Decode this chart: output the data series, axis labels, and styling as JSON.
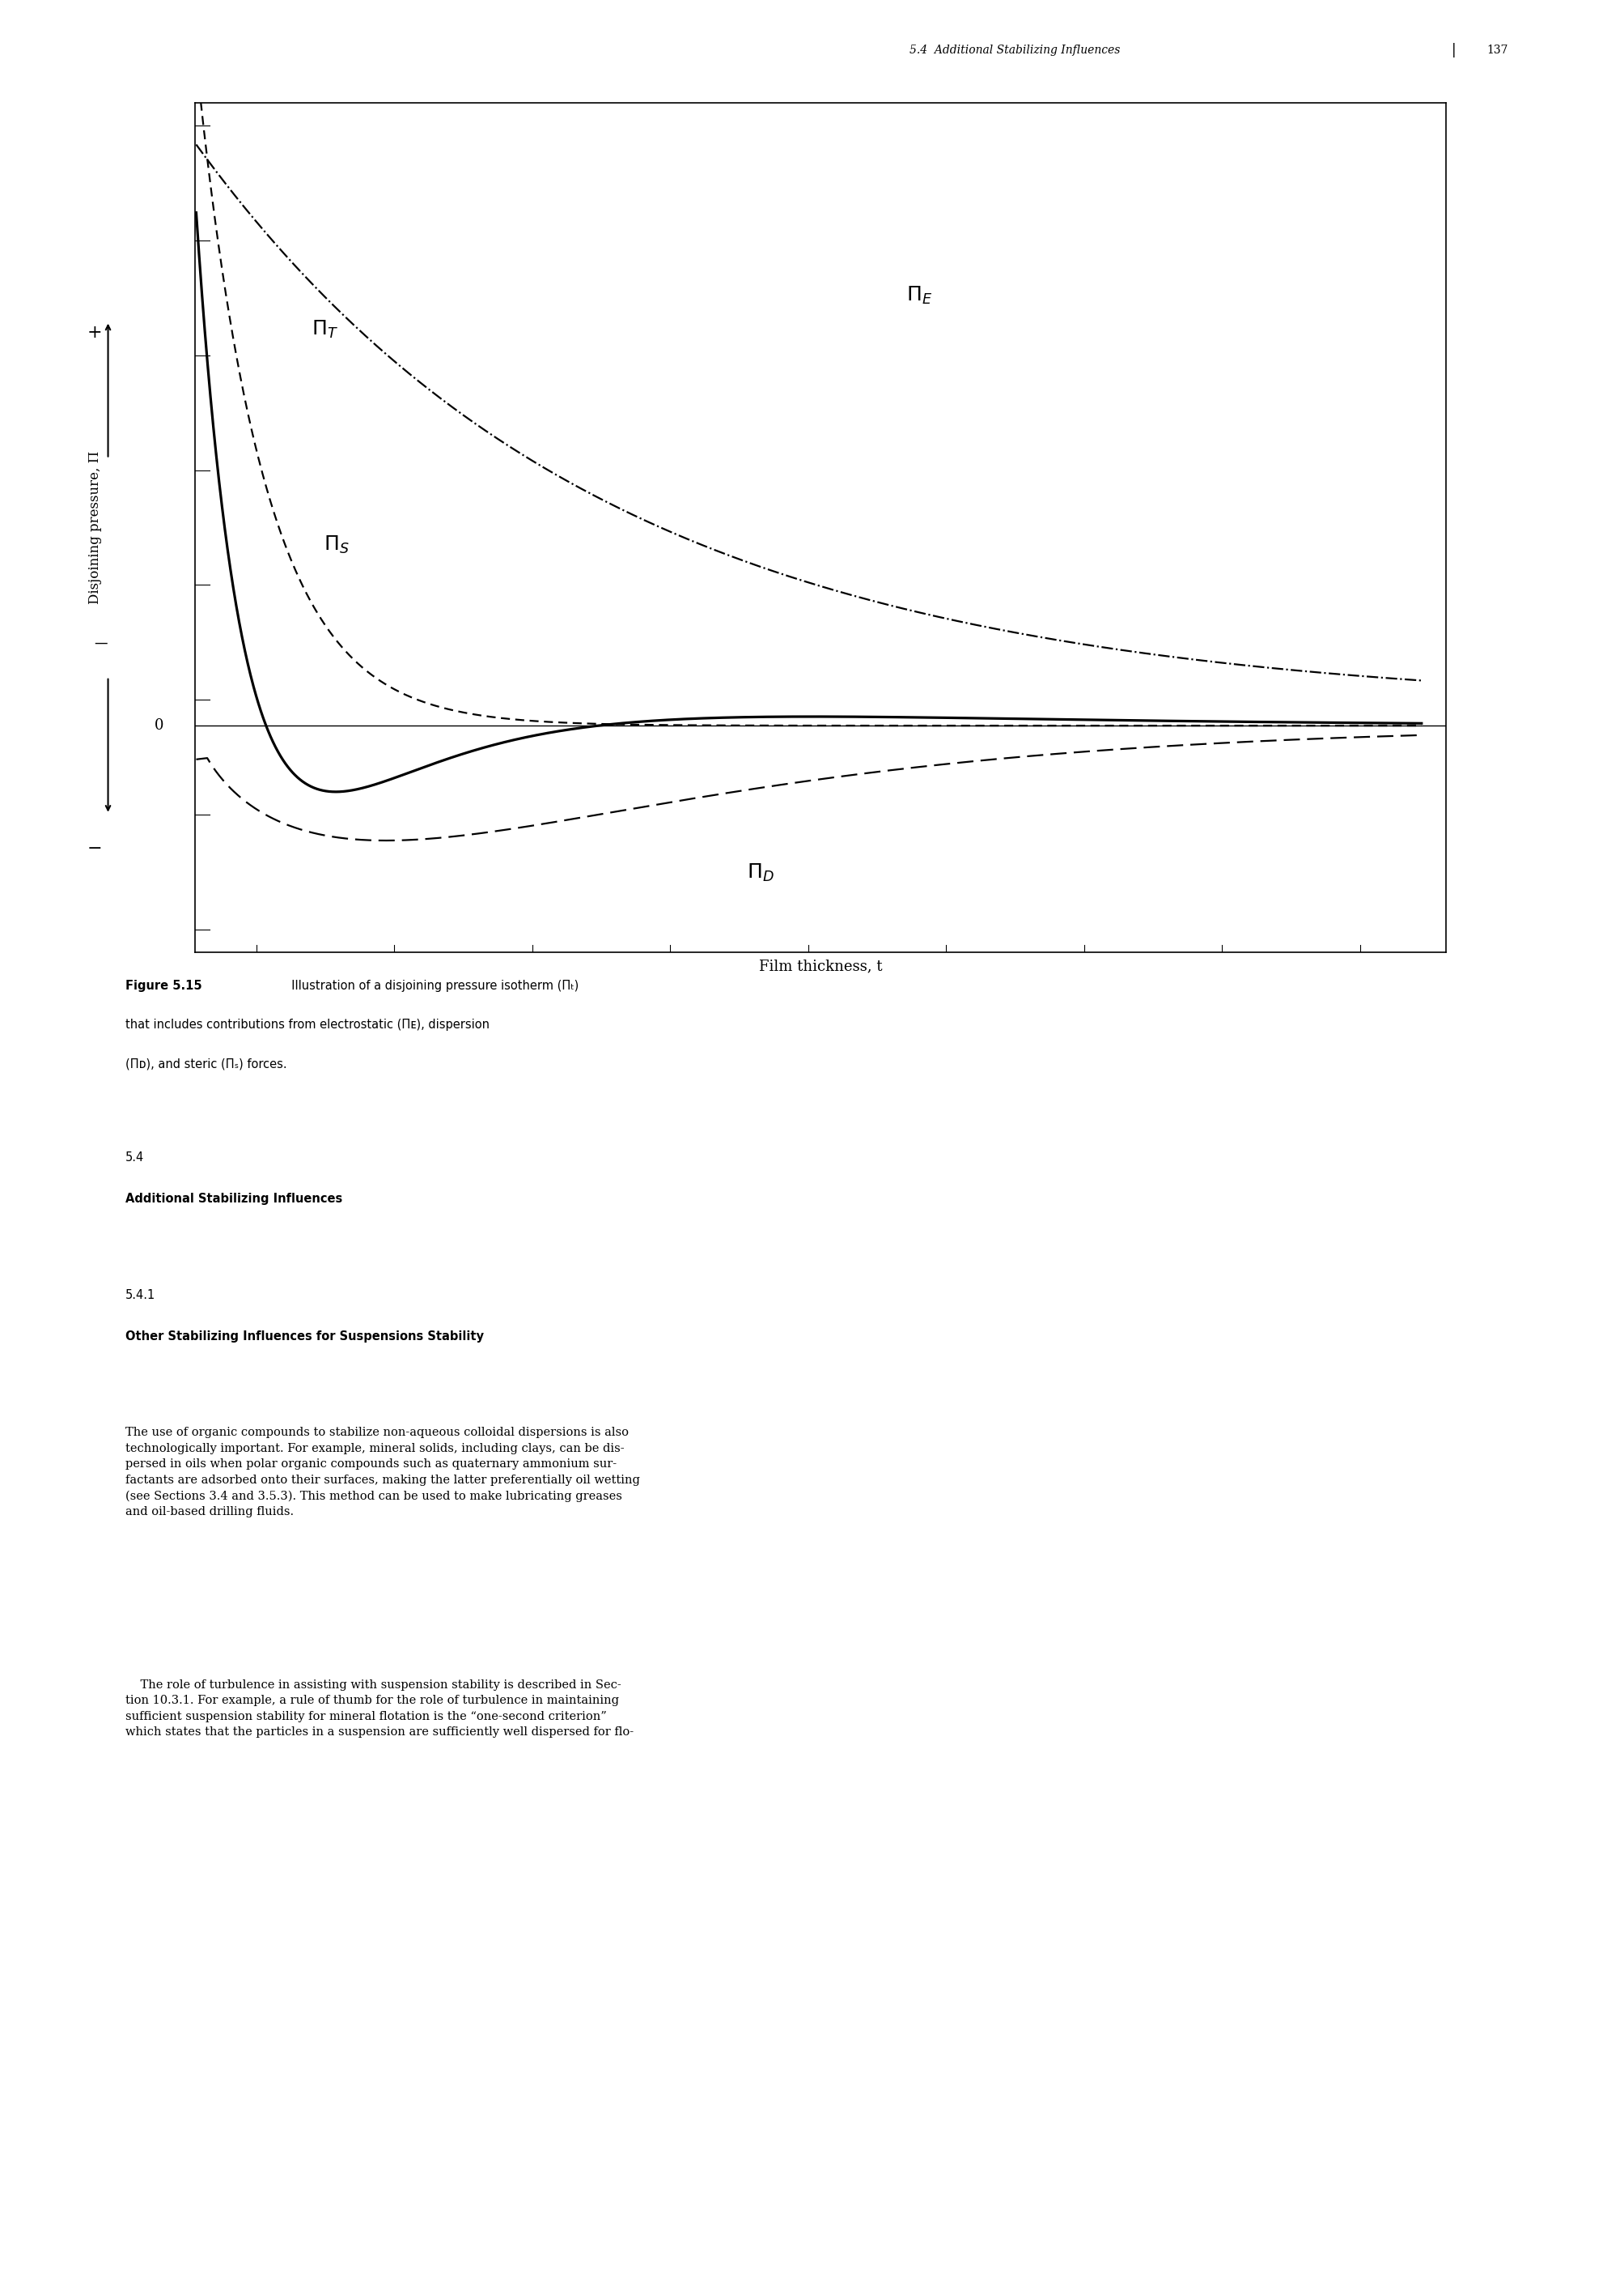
{
  "xlabel": "Film thickness, t",
  "ylabel": "Disjoining pressure, Π",
  "bg_color": "#ffffff",
  "line_color": "#000000",
  "header_italic": "5.4  Additional Stabilizing Influences",
  "page_number": "137",
  "caption_bold": "Figure 5.15",
  "caption_normal": "  Illustration of a disjoining pressure isotherm (Πₜ)",
  "caption_line2": "that includes contributions from electrostatic (Πᴇ), dispersion",
  "caption_line3": "(Πᴅ), and steric (Πₛ) forces.",
  "section_num": "5.4",
  "section_title": "Additional Stabilizing Influences",
  "subsection_num": "5.4.1",
  "subsection_title": "Other Stabilizing Influences for Suspensions Stability",
  "body1": "The use of organic compounds to stabilize non-aqueous colloidal dispersions is also\ntechnologically important. For example, mineral solids, including clays, can be dis-\npersed in oils when polar organic compounds such as quaternary ammonium sur-\nfactants are adsorbed onto their surfaces, making the latter preferentially oil wetting\n(see Sections 3.4 and 3.5.3). This method can be used to make lubricating greases\nand oil-based drilling fluids.",
  "body2": "    The role of turbulence in assisting with suspension stability is described in Sec-\ntion 10.3.1. For example, a rule of thumb for the role of turbulence in maintaining\nsufficient suspension stability for mineral flotation is the “one-second criterion”\nwhich states that the particles in a suspension are sufficiently well dispersed for flo-"
}
